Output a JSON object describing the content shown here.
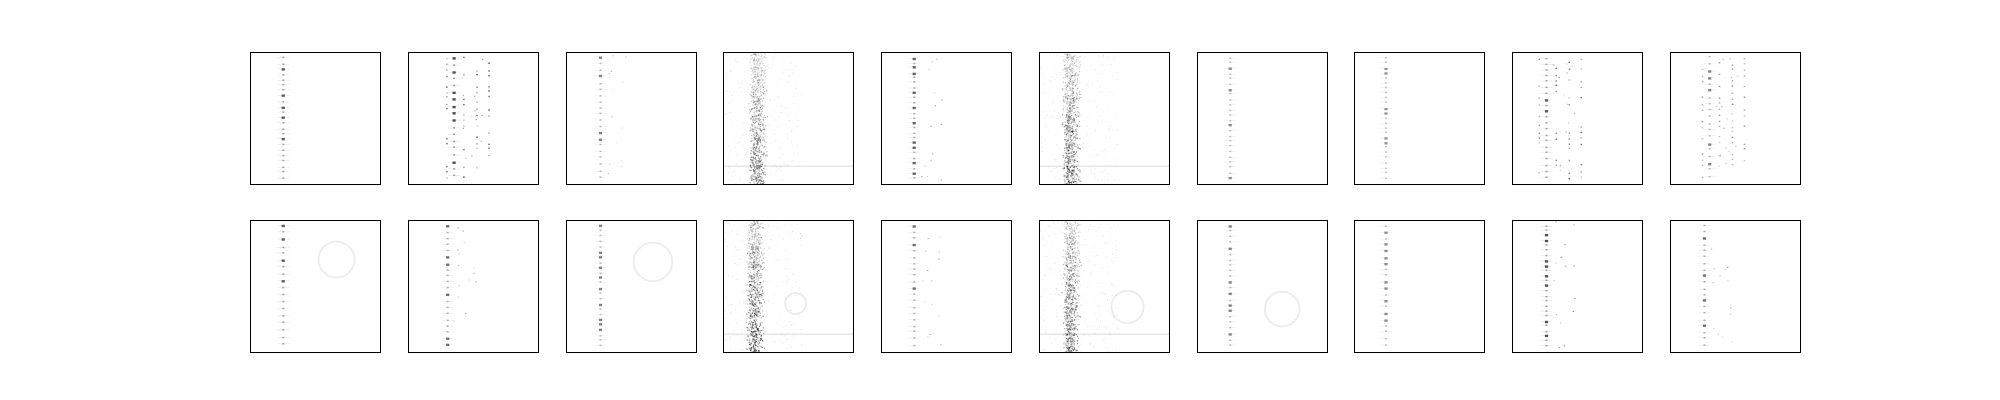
{
  "figure": {
    "background_color": "#ffffff",
    "frame_color": "#000000",
    "mark_color": "#000000",
    "rows": [
      {
        "row_name": "top",
        "panels": [
          {
            "style": "single-column",
            "column_position": 0.25,
            "intensity": 0.8,
            "side_marks": false,
            "ring": false
          },
          {
            "style": "multi-column",
            "column_position": 0.35,
            "intensity": 0.85,
            "side_marks": true,
            "ring": false
          },
          {
            "style": "single-column",
            "column_position": 0.26,
            "intensity": 0.6,
            "side_marks": true,
            "ring": false
          },
          {
            "style": "diffuse-band",
            "column_position": 0.24,
            "intensity": 0.7,
            "side_marks": false,
            "ring": false
          },
          {
            "style": "single-column",
            "column_position": 0.25,
            "intensity": 0.75,
            "side_marks": true,
            "ring": false
          },
          {
            "style": "diffuse-band",
            "column_position": 0.22,
            "intensity": 0.8,
            "side_marks": false,
            "ring": false
          },
          {
            "style": "single-column",
            "column_position": 0.25,
            "intensity": 0.55,
            "side_marks": false,
            "ring": false
          },
          {
            "style": "single-column",
            "column_position": 0.24,
            "intensity": 0.5,
            "side_marks": false,
            "ring": false
          },
          {
            "style": "multi-column",
            "column_position": 0.26,
            "intensity": 0.8,
            "side_marks": true,
            "ring": false
          },
          {
            "style": "multi-column",
            "column_position": 0.3,
            "intensity": 0.6,
            "side_marks": true,
            "ring": false
          }
        ]
      },
      {
        "row_name": "bottom",
        "panels": [
          {
            "style": "single-column",
            "column_position": 0.25,
            "intensity": 0.8,
            "side_marks": false,
            "ring": true
          },
          {
            "style": "single-column",
            "column_position": 0.3,
            "intensity": 0.7,
            "side_marks": true,
            "ring": false
          },
          {
            "style": "single-column",
            "column_position": 0.26,
            "intensity": 0.6,
            "side_marks": false,
            "ring": true
          },
          {
            "style": "diffuse-band",
            "column_position": 0.22,
            "intensity": 0.9,
            "side_marks": false,
            "ring": true
          },
          {
            "style": "single-column",
            "column_position": 0.25,
            "intensity": 0.7,
            "side_marks": true,
            "ring": false
          },
          {
            "style": "diffuse-band",
            "column_position": 0.22,
            "intensity": 0.8,
            "side_marks": false,
            "ring": true
          },
          {
            "style": "single-column",
            "column_position": 0.25,
            "intensity": 0.6,
            "side_marks": false,
            "ring": true
          },
          {
            "style": "single-column",
            "column_position": 0.24,
            "intensity": 0.55,
            "side_marks": false,
            "ring": false
          },
          {
            "style": "single-column",
            "column_position": 0.26,
            "intensity": 0.85,
            "side_marks": true,
            "ring": false
          },
          {
            "style": "single-column",
            "column_position": 0.26,
            "intensity": 0.7,
            "side_marks": true,
            "ring": false
          }
        ]
      }
    ]
  }
}
